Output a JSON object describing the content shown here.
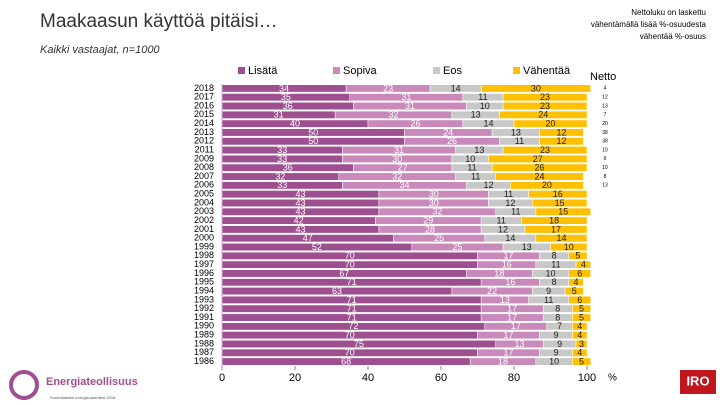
{
  "chart_data": {
    "type": "stacked-barh",
    "title": "Maakaasun käyttöä pitäisi…",
    "subtitle": "Kaikki vastaajat, n=1000",
    "note": [
      "Nettoluku on laskettu",
      "vähentämällä lisää %-osuudesta",
      "vähentää %-osuus"
    ],
    "categories": [
      "2018",
      "2017",
      "2016",
      "2015",
      "2014",
      "2013",
      "2012",
      "2011",
      "2009",
      "2008",
      "2007",
      "2006",
      "2005",
      "2004",
      "2003",
      "2002",
      "2001",
      "2000",
      "1999",
      "1998",
      "1997",
      "1996",
      "1995",
      "1994",
      "1993",
      "1992",
      "1991",
      "1990",
      "1989",
      "1988",
      "1987",
      "1986"
    ],
    "series": [
      {
        "name": "Lisätä",
        "color": "#9e4f8f",
        "values": [
          34,
          35,
          36,
          31,
          40,
          50,
          50,
          33,
          33,
          36,
          32,
          33,
          43,
          43,
          43,
          42,
          43,
          47,
          52,
          70,
          70,
          67,
          71,
          63,
          71,
          71,
          71,
          72,
          70,
          75,
          70,
          68
        ]
      },
      {
        "name": "Sopiva",
        "color": "#c98abb",
        "values": [
          23,
          31,
          31,
          32,
          26,
          24,
          26,
          31,
          30,
          27,
          32,
          34,
          30,
          30,
          32,
          29,
          28,
          25,
          25,
          17,
          16,
          18,
          16,
          22,
          13,
          17,
          17,
          17,
          17,
          13,
          17,
          18
        ]
      },
      {
        "name": "Eos",
        "color": "#c8c8c8",
        "values": [
          14,
          11,
          10,
          13,
          14,
          13,
          11,
          13,
          10,
          11,
          11,
          12,
          11,
          12,
          11,
          11,
          12,
          14,
          13,
          8,
          11,
          10,
          8,
          9,
          11,
          8,
          8,
          7,
          9,
          9,
          9,
          10
        ]
      },
      {
        "name": "Vähentää",
        "color": "#ffc000",
        "values": [
          30,
          23,
          23,
          24,
          20,
          12,
          12,
          23,
          27,
          26,
          24,
          20,
          16,
          15,
          15,
          18,
          17,
          14,
          10,
          5,
          4,
          6,
          4,
          5,
          6,
          5,
          5,
          4,
          4,
          3,
          4,
          5
        ]
      }
    ],
    "netto": {
      "label": "Netto",
      "values": [
        4,
        12,
        13,
        7,
        20,
        38,
        38,
        10,
        6,
        10,
        8,
        13
      ]
    },
    "xlim": [
      0,
      100
    ],
    "xticks": [
      0,
      20,
      40,
      60,
      80,
      100
    ],
    "xunit": "%",
    "branding": {
      "logo": "Energiateollisuus",
      "footer": "Suomalaisten energia-asenteet 2018",
      "iro": "IRO"
    }
  }
}
